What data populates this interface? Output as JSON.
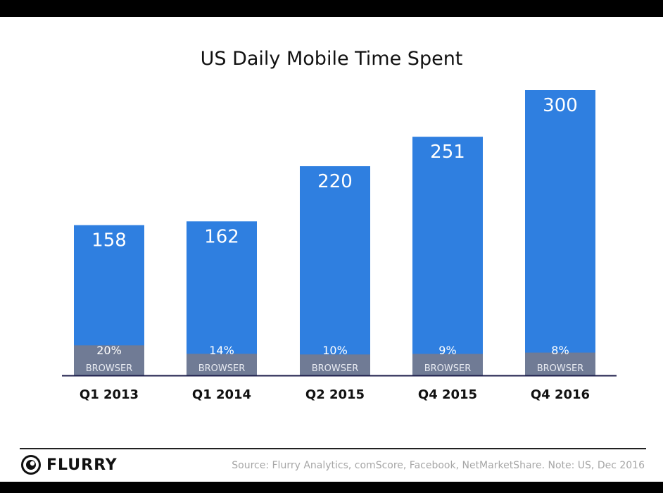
{
  "colors": {
    "bar": "#2f7fe0",
    "browser": "#707b95",
    "axis": "#1c1c4a",
    "text_on_bar": "#ffffff",
    "category_text": "#111111",
    "source_text": "#a6a6a6"
  },
  "logo": {
    "text": "FLURRY",
    "icon": "flurry-logo-icon"
  },
  "source": "Source: Flurry Analytics, comScore, Facebook, NetMarketShare. Note: US, Dec 2016",
  "chart_data": {
    "type": "bar",
    "stacked": true,
    "title": "US Daily Mobile Time Spent",
    "xlabel": "",
    "ylabel": "",
    "ylim": [
      0,
      300
    ],
    "grid": false,
    "categories": [
      "Q1 2013",
      "Q1 2014",
      "Q2 2015",
      "Q4 2015",
      "Q4 2016"
    ],
    "totals": [
      158,
      162,
      220,
      251,
      300
    ],
    "browser_share_labels": [
      "20%",
      "14%",
      "10%",
      "9%",
      "8%"
    ],
    "browser_share": [
      20,
      14,
      10,
      9,
      8
    ],
    "browser_label": "BROWSER"
  }
}
